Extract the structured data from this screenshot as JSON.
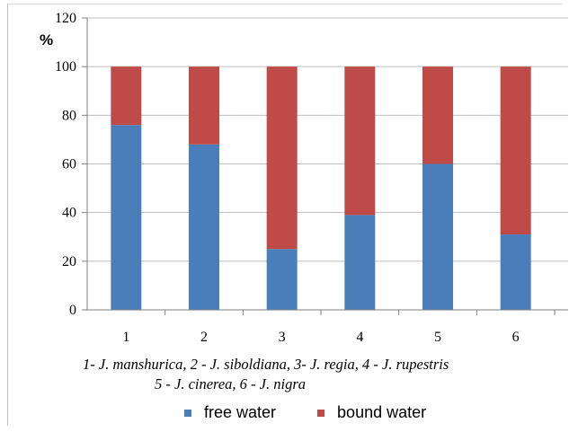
{
  "chart_data": {
    "type": "bar",
    "stacked": true,
    "unit_label": "%",
    "categories": [
      "1",
      "2",
      "3",
      "4",
      "5",
      "6"
    ],
    "series": [
      {
        "name": "free water",
        "color": "#4a7ebb",
        "values": [
          76,
          68,
          25,
          39,
          60,
          31
        ]
      },
      {
        "name": "bound water",
        "color": "#be4b48",
        "values": [
          24,
          32,
          75,
          61,
          40,
          69
        ]
      }
    ],
    "ylim": [
      0,
      120
    ],
    "yticks": [
      0,
      20,
      40,
      60,
      80,
      100,
      120
    ],
    "grid": true,
    "legend_position": "bottom",
    "caption_line1": "1- J. manshurica, 2 - J. siboldiana,  3- J. regia, 4 - J. rupestris",
    "caption_line2": "5 - J. cinerea, 6 - J. nigra"
  }
}
